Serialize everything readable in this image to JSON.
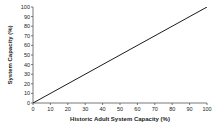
{
  "chart_data": {
    "type": "line",
    "x_label": "Historic Adult System Capacity (%)",
    "y_label": "System Capacity (%)",
    "x": [
      0,
      100
    ],
    "values": [
      0,
      100
    ],
    "color": "#000000",
    "xlim": [
      0,
      100
    ],
    "xticks": [
      0,
      10,
      20,
      30,
      40,
      50,
      60,
      70,
      80,
      90,
      100
    ],
    "ylim": [
      0,
      100
    ],
    "yticks": [
      0,
      10,
      20,
      30,
      40,
      50,
      60,
      70,
      80,
      90,
      100
    ],
    "grid": false
  }
}
